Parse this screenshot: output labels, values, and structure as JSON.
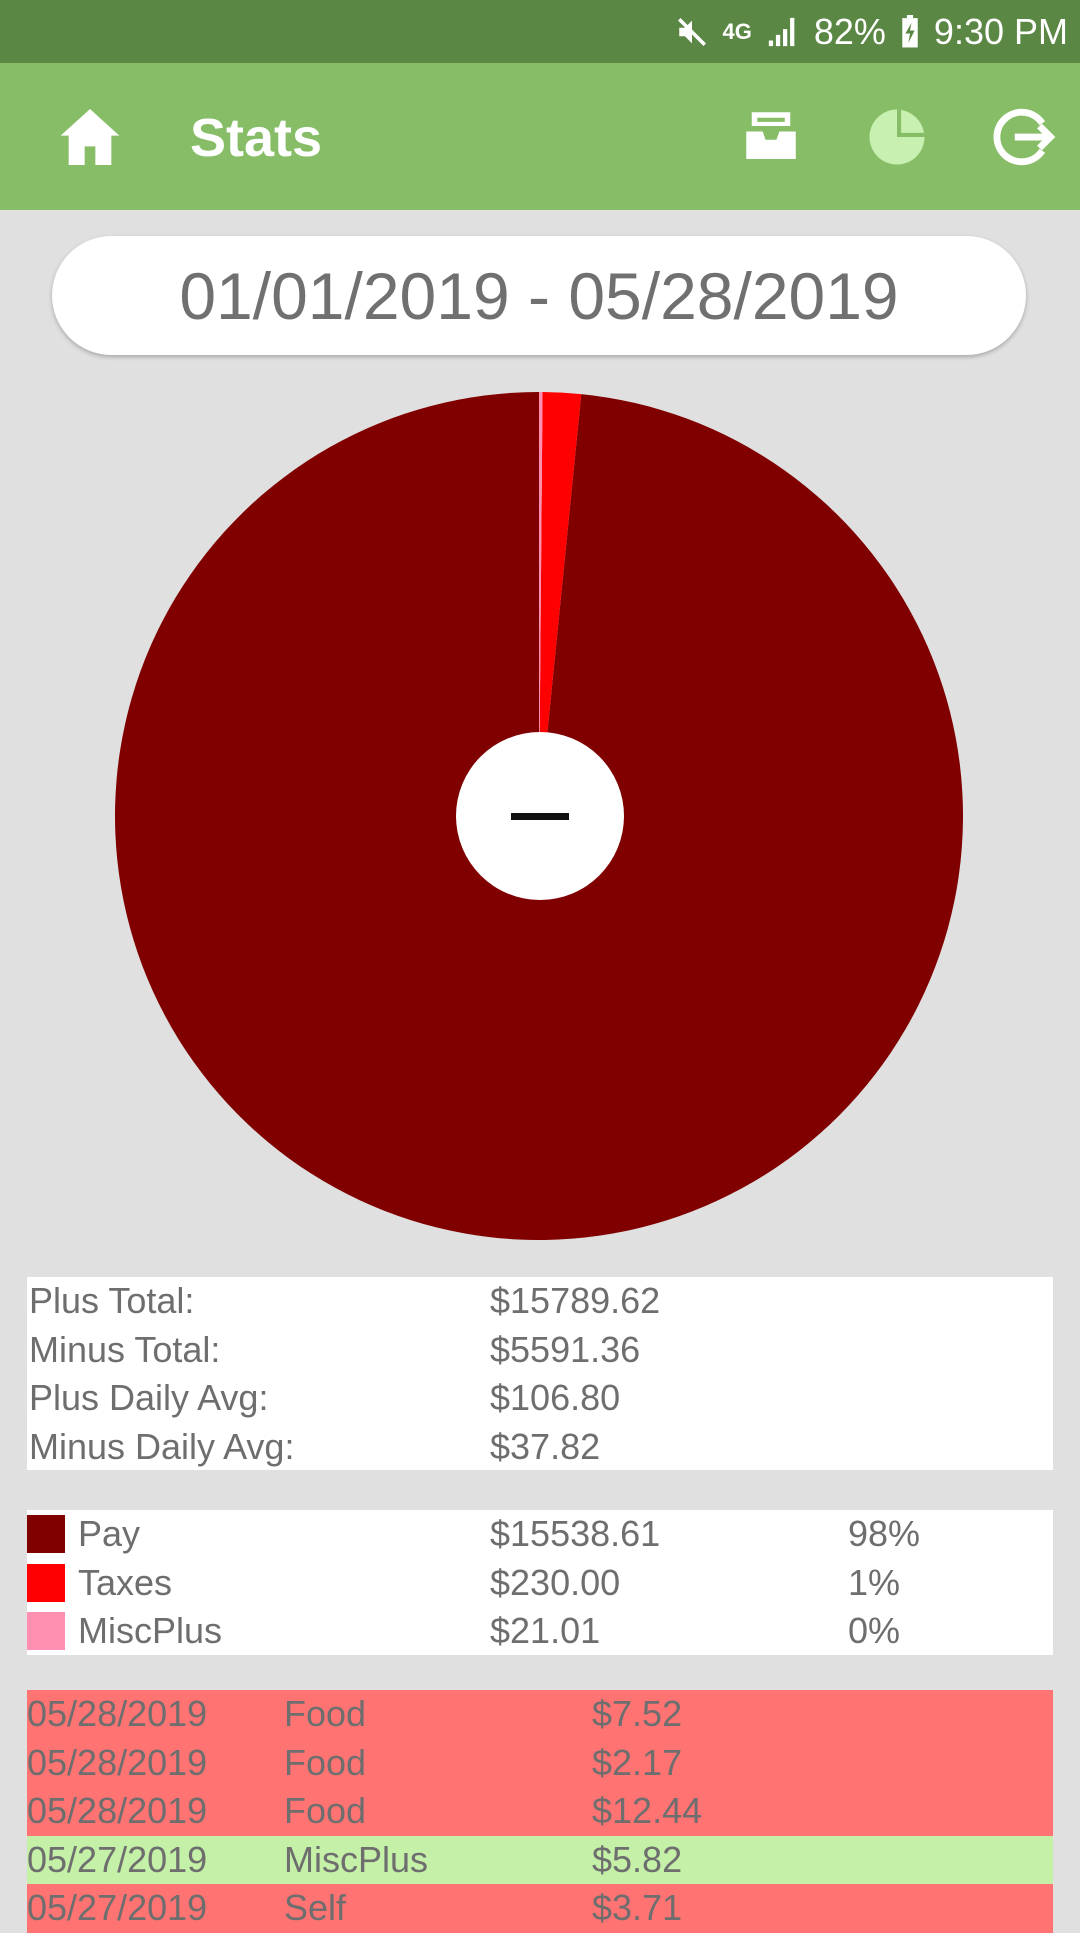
{
  "status_bar": {
    "network": "4G",
    "battery": "82%",
    "time": "9:30 PM"
  },
  "app_bar": {
    "title": "Stats",
    "color": "#86bd66",
    "icons": [
      "home-icon",
      "inbox-icon",
      "pie-chart-icon",
      "logout-icon"
    ]
  },
  "date_range": "01/01/2019 - 05/28/2019",
  "chart_data": {
    "type": "pie",
    "categories": [
      "Pay",
      "Taxes",
      "MiscPlus"
    ],
    "values": [
      15538.61,
      230.0,
      21.01
    ],
    "colors": [
      "#800000",
      "#ff0000",
      "#ff8fb0"
    ],
    "center_label": "−"
  },
  "totals": [
    {
      "label": "Plus Total:",
      "value": "$15789.62"
    },
    {
      "label": "Minus Total:",
      "value": "$5591.36"
    },
    {
      "label": "Plus Daily Avg:",
      "value": "$106.80"
    },
    {
      "label": "Minus Daily Avg:",
      "value": "$37.82"
    }
  ],
  "legend": [
    {
      "name": "Pay",
      "amount": "$15538.61",
      "percent": "98%",
      "color": "#800000"
    },
    {
      "name": "Taxes",
      "amount": "$230.00",
      "percent": "1%",
      "color": "#ff0000"
    },
    {
      "name": "MiscPlus",
      "amount": "$21.01",
      "percent": "0%",
      "color": "#ff8fb0"
    }
  ],
  "transactions": [
    {
      "date": "05/28/2019",
      "category": "Food",
      "amount": "$7.52",
      "color": "#ff7373"
    },
    {
      "date": "05/28/2019",
      "category": "Food",
      "amount": "$2.17",
      "color": "#ff7373"
    },
    {
      "date": "05/28/2019",
      "category": "Food",
      "amount": "$12.44",
      "color": "#ff7373"
    },
    {
      "date": "05/27/2019",
      "category": "MiscPlus",
      "amount": "$5.82",
      "color": "#c4f0a8"
    },
    {
      "date": "05/27/2019",
      "category": "Self",
      "amount": "$3.71",
      "color": "#ff7373"
    }
  ]
}
